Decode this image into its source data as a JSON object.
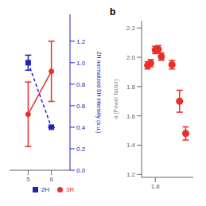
{
  "chart_data": [
    {
      "type": "line",
      "x": [
        5,
        6
      ],
      "xlim": [
        4.2,
        6.8
      ],
      "xticks": [
        5,
        6
      ],
      "ylim": [
        0.0,
        1.45
      ],
      "yticks": [
        {
          "value": 0.0,
          "label": "0.0"
        },
        0.2,
        0.4,
        0.6,
        0.8,
        {
          "value": 1.0,
          "label": "1.0"
        },
        1.2
      ],
      "ylabel": "2H normalized SH intensity (a.u.)",
      "legend": "bottom",
      "series": [
        {
          "name": "3R",
          "color": "#e8302a",
          "marker": "circle",
          "line_style": "solid",
          "values": [
            0.52,
            0.92
          ],
          "yerr": [
            0.3,
            0.28
          ]
        },
        {
          "name": "2H",
          "color": "#2222bb",
          "marker": "square",
          "line_style": "dashed",
          "values": [
            1.0,
            0.4
          ],
          "yerr_lo": [
            0.07,
            0.0
          ],
          "yerr_hi": [
            0.07,
            0.0
          ]
        }
      ]
    },
    {
      "type": "scatter",
      "annotation": "b",
      "x": [
        1.775,
        1.785,
        1.8,
        1.81,
        1.82,
        1.855,
        1.88,
        1.9
      ],
      "values": [
        1.945,
        1.96,
        2.05,
        2.055,
        2.005,
        1.95,
        1.7,
        1.48
      ],
      "yerr": [
        0.025,
        0.025,
        0.025,
        0.025,
        0.025,
        0.03,
        0.075,
        0.045
      ],
      "color": "#e8302a",
      "marker": "circle",
      "xlim": [
        1.755,
        1.925
      ],
      "xticks": [
        1.8
      ],
      "ylim": [
        1.18,
        2.25
      ],
      "yticks": [
        1.2,
        1.4,
        1.6,
        1.8,
        {
          "value": 2.0,
          "label": "2.0"
        },
        2.2
      ],
      "ylabel": "α (Power factor)"
    }
  ]
}
